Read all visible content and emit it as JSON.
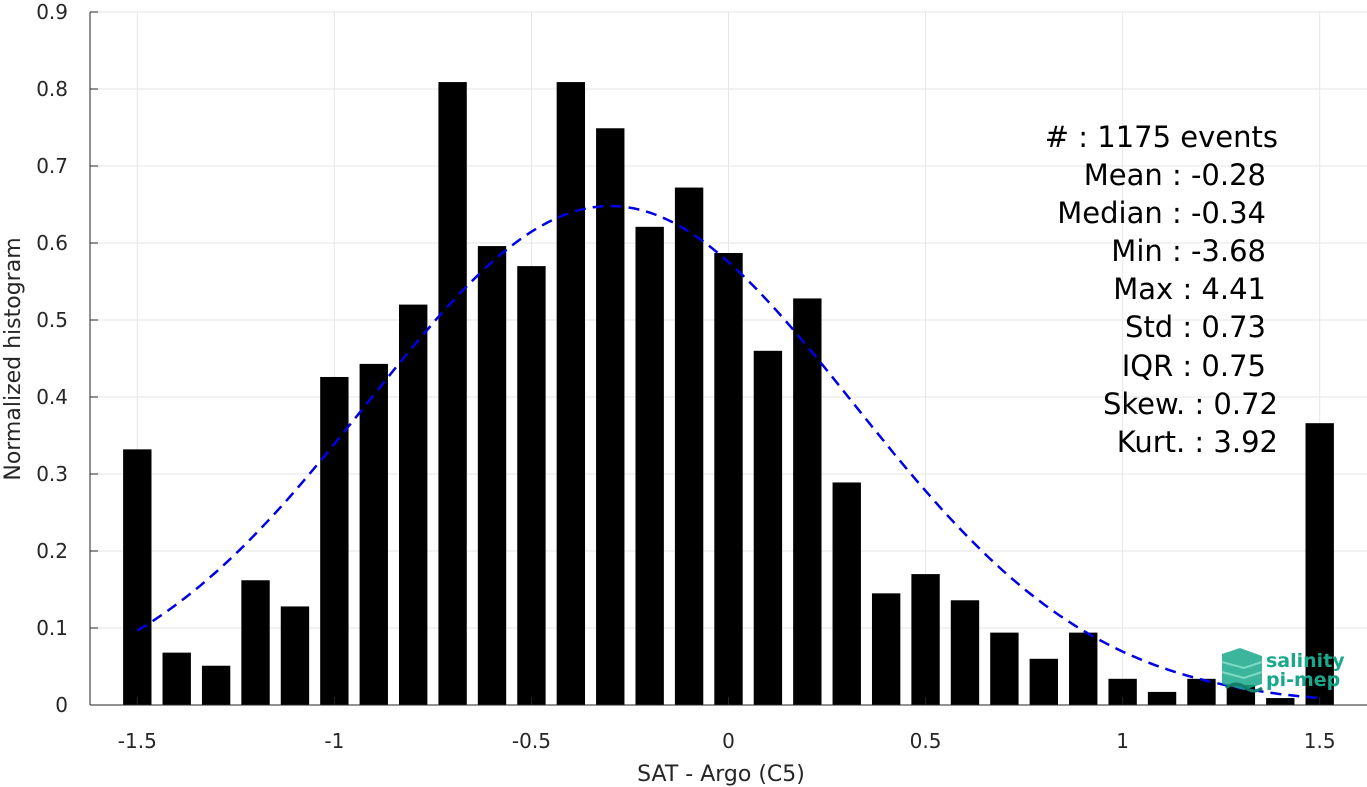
{
  "chart_data": {
    "type": "bar",
    "xlabel": "SAT - Argo (C5)",
    "ylabel": "Normalized histogram",
    "xlim": [
      -1.62,
      1.62
    ],
    "ylim": [
      0,
      0.9
    ],
    "xticks": [
      -1.5,
      -1,
      -0.5,
      0,
      0.5,
      1,
      1.5
    ],
    "xtick_labels": [
      "-1.5",
      "-1",
      "-0.5",
      "0",
      "0.5",
      "1",
      "1.5"
    ],
    "yticks": [
      0,
      0.1,
      0.2,
      0.3,
      0.4,
      0.5,
      0.6,
      0.7,
      0.8,
      0.9
    ],
    "ytick_labels": [
      "0",
      "0.1",
      "0.2",
      "0.3",
      "0.4",
      "0.5",
      "0.6",
      "0.7",
      "0.8",
      "0.9"
    ],
    "grid": true,
    "bar_color": "#000000",
    "x": [
      -1.5,
      -1.4,
      -1.3,
      -1.2,
      -1.1,
      -1.0,
      -0.9,
      -0.8,
      -0.7,
      -0.6,
      -0.5,
      -0.4,
      -0.3,
      -0.2,
      -0.1,
      0.0,
      0.1,
      0.2,
      0.3,
      0.4,
      0.5,
      0.6,
      0.7,
      0.8,
      0.9,
      1.0,
      1.1,
      1.2,
      1.3,
      1.4,
      1.5
    ],
    "values": [
      0.332,
      0.068,
      0.051,
      0.162,
      0.128,
      0.426,
      0.443,
      0.52,
      0.809,
      0.596,
      0.57,
      0.809,
      0.749,
      0.621,
      0.672,
      0.587,
      0.46,
      0.528,
      0.289,
      0.145,
      0.17,
      0.136,
      0.094,
      0.06,
      0.094,
      0.034,
      0.017,
      0.034,
      0.026,
      0.009,
      0.366
    ],
    "fit_curve": {
      "type": "normal",
      "mean": -0.3,
      "std": 0.615,
      "x_range": [
        -1.5,
        1.5
      ],
      "color": "#0000e6",
      "style": "dashed"
    }
  },
  "stats": [
    "#  : 1175 events",
    "Mean : -0.28",
    "Median : -0.34",
    "Min : -3.68",
    "Max : 4.41",
    "Std : 0.73",
    "IQR : 0.75",
    "Skew. : 0.72",
    "Kurt. : 3.92"
  ],
  "logo": {
    "line1": "salinity",
    "line2": "pi-mep",
    "color": "#1aa88c"
  }
}
